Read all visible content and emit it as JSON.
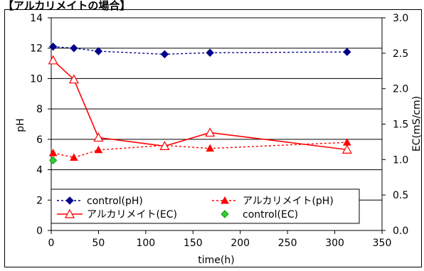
{
  "header": {
    "text": "【アルカリメイトの場合】"
  },
  "chart_data": {
    "type": "line",
    "xlabel": "time(h)",
    "ylabel_left": "pH",
    "ylabel_right": "EC(mS/cm)",
    "xlim": [
      0,
      350
    ],
    "ylim_left": [
      0,
      14
    ],
    "ylim_right": [
      0,
      3.0
    ],
    "x_ticks": [
      "0",
      "50",
      "100",
      "150",
      "200",
      "250",
      "300",
      "350"
    ],
    "y_ticks_left": [
      "0",
      "2",
      "4",
      "6",
      "8",
      "10",
      "12",
      "14"
    ],
    "y_ticks_right": [
      "0.0",
      "0.5",
      "1.0",
      "1.5",
      "2.0",
      "2.5",
      "3.0"
    ],
    "grid": "horizontal",
    "legend_position": "bottom",
    "series": [
      {
        "name": "control(pH)",
        "axis": "left",
        "color": "#00008B",
        "marker": "diamond-filled",
        "line": "dotted",
        "x": [
          2,
          24,
          50,
          120,
          168,
          313
        ],
        "y": [
          12.1,
          12.0,
          11.8,
          11.6,
          11.7,
          11.75
        ]
      },
      {
        "name": "アルカリメイト(pH)",
        "axis": "left",
        "color": "#FF0000",
        "marker": "triangle-filled",
        "line": "dotted",
        "x": [
          2,
          24,
          50,
          120,
          168,
          313
        ],
        "y": [
          5.1,
          4.8,
          5.3,
          5.6,
          5.4,
          5.8
        ]
      },
      {
        "name": "アルカリメイト(EC)",
        "axis": "right",
        "color": "#FF0000",
        "marker": "triangle-open",
        "line": "solid",
        "x": [
          2,
          24,
          50,
          120,
          168,
          313
        ],
        "y": [
          2.4,
          2.13,
          1.31,
          1.19,
          1.38,
          1.14
        ]
      },
      {
        "name": "control(EC)",
        "axis": "right",
        "color": "#33CC33",
        "marker": "diamond-filled",
        "line": "none",
        "x": [
          2
        ],
        "y": [
          0.99
        ]
      }
    ]
  }
}
